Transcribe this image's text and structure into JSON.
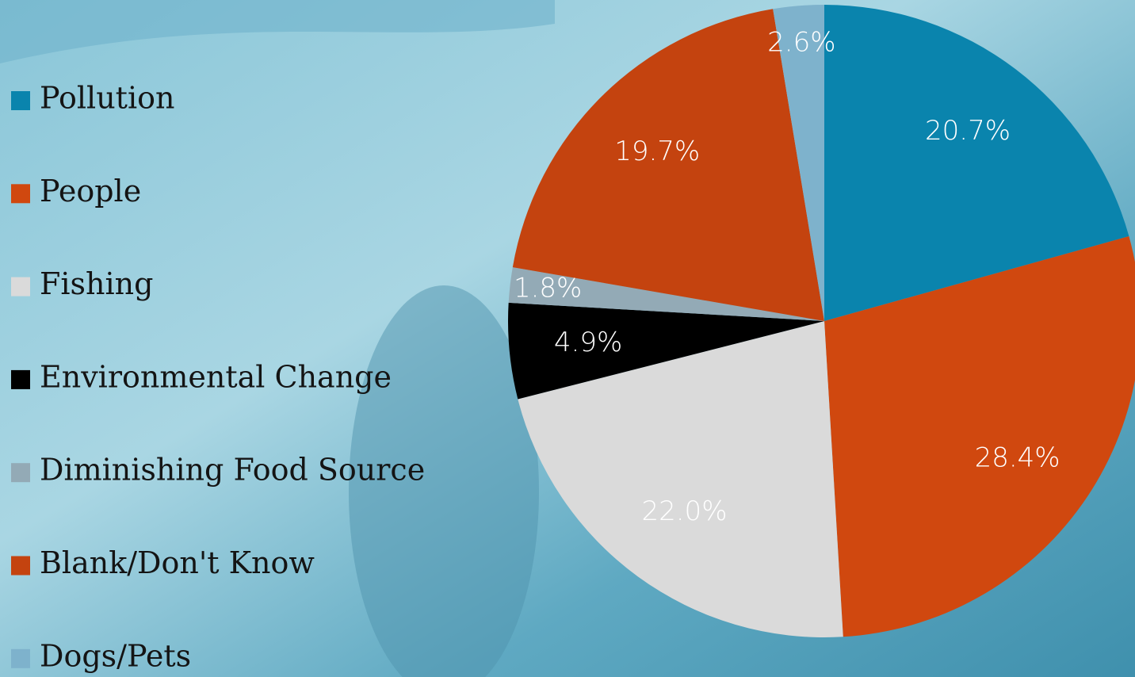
{
  "chart_data": {
    "type": "pie",
    "categories": [
      "Pollution",
      "People",
      "Fishing",
      "Environmental Change",
      "Diminishing Food Source",
      "Blank/Don't Know",
      "Dogs/Pets"
    ],
    "values": [
      20.7,
      28.4,
      22,
      4.9,
      1.8,
      19.7,
      2.6
    ],
    "value_labels": [
      "20.7%",
      "28.4%",
      "22.0%",
      "4.9%",
      "1.8%",
      "19.7%",
      "2.6%"
    ],
    "colors": [
      "#0a84ad",
      "#d0480f",
      "#dadada",
      "#000000",
      "#93aab6",
      "#c4430f",
      "#7eb2cc"
    ],
    "legend": "left"
  }
}
